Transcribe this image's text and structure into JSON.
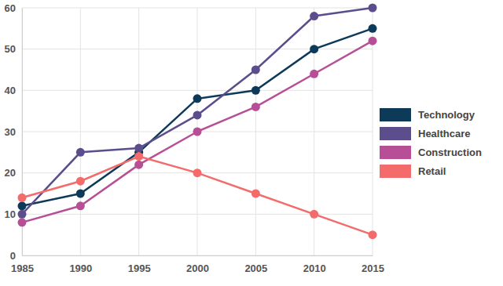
{
  "chart_data": {
    "type": "line",
    "x": [
      1985,
      1990,
      1995,
      2000,
      2005,
      2010,
      2015
    ],
    "xlim": [
      1985,
      2015
    ],
    "xticks": [
      1985,
      1990,
      1995,
      2000,
      2005,
      2010,
      2015
    ],
    "ylim": [
      0,
      60
    ],
    "yticks": [
      0,
      10,
      20,
      30,
      40,
      50,
      60
    ],
    "grid": true,
    "legend": "right",
    "marker": "circle",
    "series": [
      {
        "name": "Technology",
        "color": "#0d3a58",
        "values": [
          12,
          15,
          25,
          38,
          40,
          50,
          55
        ]
      },
      {
        "name": "Healthcare",
        "color": "#5c4d8c",
        "values": [
          10,
          25,
          26,
          34,
          45,
          58,
          60
        ]
      },
      {
        "name": "Construction",
        "color": "#b74f96",
        "values": [
          8,
          12,
          22,
          30,
          36,
          44,
          52
        ]
      },
      {
        "name": "Retail",
        "color": "#f36b6b",
        "values": [
          14,
          18,
          24,
          20,
          15,
          10,
          5
        ]
      }
    ]
  }
}
